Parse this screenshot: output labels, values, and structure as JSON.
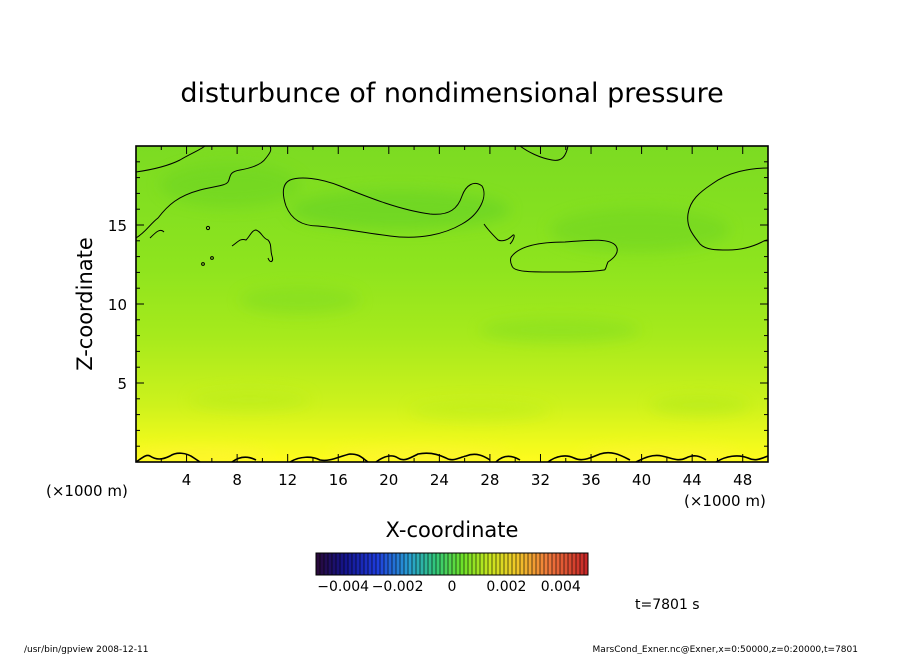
{
  "chart_data": {
    "type": "heatmap",
    "title": "disturbunce of nondimensional pressure",
    "xlabel": "X-coordinate",
    "ylabel": "Z-coordinate",
    "x_unit_left": "(×1000 m)",
    "x_unit_right": "(×1000 m)",
    "xlim": [
      0,
      50
    ],
    "ylim": [
      0,
      20
    ],
    "x_ticks": [
      4,
      8,
      12,
      16,
      20,
      24,
      28,
      32,
      36,
      40,
      44,
      48
    ],
    "y_ticks": [
      5,
      10,
      15
    ],
    "colorbar": {
      "min": -0.005,
      "max": 0.005,
      "ticks": [
        {
          "value": -0.004,
          "label": "−0.004"
        },
        {
          "value": -0.002,
          "label": "−0.002"
        },
        {
          "value": 0,
          "label": "0"
        },
        {
          "value": 0.002,
          "label": "0.002"
        },
        {
          "value": 0.004,
          "label": "0.004"
        }
      ]
    },
    "field_note": "values near 0 throughout; slightly positive (yellow) near ground, slightly negative (green) aloft",
    "contour_value": 0
  },
  "annotations": {
    "time": "t=7801 s",
    "footer_left": "/usr/bin/gpview   2008-12-11",
    "footer_right": "MarsCond_Exner.nc@Exner,x=0:50000,z=0:20000,t=7801"
  },
  "colors": {
    "field_low": "#48d232",
    "field_mid": "#7ee61e",
    "field_high": "#ffff14",
    "contour": "#000000"
  }
}
